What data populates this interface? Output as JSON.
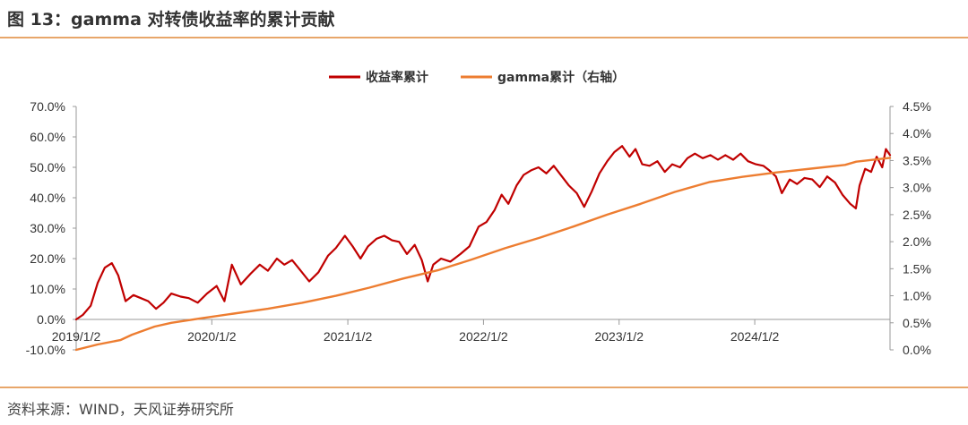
{
  "header": {
    "title": "图 13：gamma 对转债收益率的累计贡献"
  },
  "footer": {
    "source": "资料来源：WIND，天风证券研究所"
  },
  "colors": {
    "series1": "#c00000",
    "series2": "#ed7d31",
    "accent_rule": "#e8a66a"
  },
  "chart_data": {
    "type": "line",
    "title": "",
    "x_tick_labels": [
      "2019/1/2",
      "2020/1/2",
      "2021/1/2",
      "2022/1/2",
      "2023/1/2",
      "2024/1/2"
    ],
    "x_range": [
      "2019/1/2",
      "2024/12/31"
    ],
    "legend_position": "top-center",
    "y_left": {
      "ticks": [
        "-10.0%",
        "0.0%",
        "10.0%",
        "20.0%",
        "30.0%",
        "40.0%",
        "50.0%",
        "60.0%",
        "70.0%"
      ],
      "range": [
        -10,
        70
      ]
    },
    "y_right": {
      "ticks": [
        "0.0%",
        "0.5%",
        "1.0%",
        "1.5%",
        "2.0%",
        "2.5%",
        "3.0%",
        "3.5%",
        "4.0%",
        "4.5%"
      ],
      "range": [
        0,
        4.5
      ]
    },
    "series": [
      {
        "name": "收益率累计",
        "axis": "left",
        "points": [
          [
            "2019/1/2",
            0.0
          ],
          [
            "2019/1/20",
            1.5
          ],
          [
            "2019/2/10",
            4.5
          ],
          [
            "2019/3/1",
            12.0
          ],
          [
            "2019/3/20",
            17.0
          ],
          [
            "2019/4/8",
            18.5
          ],
          [
            "2019/4/25",
            14.5
          ],
          [
            "2019/5/15",
            6.0
          ],
          [
            "2019/6/5",
            8.0
          ],
          [
            "2019/6/25",
            7.0
          ],
          [
            "2019/7/15",
            6.0
          ],
          [
            "2019/8/5",
            3.5
          ],
          [
            "2019/8/25",
            5.5
          ],
          [
            "2019/9/15",
            8.5
          ],
          [
            "2019/10/10",
            7.5
          ],
          [
            "2019/11/1",
            7.0
          ],
          [
            "2019/11/25",
            5.5
          ],
          [
            "2019/12/20",
            8.5
          ],
          [
            "2020/1/15",
            11.0
          ],
          [
            "2020/2/5",
            6.0
          ],
          [
            "2020/2/25",
            18.0
          ],
          [
            "2020/3/20",
            11.5
          ],
          [
            "2020/4/15",
            15.0
          ],
          [
            "2020/5/10",
            18.0
          ],
          [
            "2020/6/1",
            16.0
          ],
          [
            "2020/6/25",
            20.0
          ],
          [
            "2020/7/15",
            18.0
          ],
          [
            "2020/8/5",
            19.5
          ],
          [
            "2020/8/25",
            16.5
          ],
          [
            "2020/9/20",
            12.5
          ],
          [
            "2020/10/15",
            15.5
          ],
          [
            "2020/11/10",
            21.0
          ],
          [
            "2020/12/1",
            23.5
          ],
          [
            "2020/12/25",
            27.5
          ],
          [
            "2021/1/15",
            24.0
          ],
          [
            "2021/2/5",
            20.0
          ],
          [
            "2021/2/25",
            24.0
          ],
          [
            "2021/3/20",
            26.5
          ],
          [
            "2021/4/10",
            27.5
          ],
          [
            "2021/5/1",
            26.0
          ],
          [
            "2021/5/20",
            25.5
          ],
          [
            "2021/6/10",
            21.5
          ],
          [
            "2021/7/1",
            24.5
          ],
          [
            "2021/7/20",
            19.5
          ],
          [
            "2021/8/5",
            12.5
          ],
          [
            "2021/8/20",
            18.0
          ],
          [
            "2021/9/10",
            20.0
          ],
          [
            "2021/10/5",
            19.0
          ],
          [
            "2021/11/1",
            21.5
          ],
          [
            "2021/11/25",
            24.0
          ],
          [
            "2021/12/20",
            30.5
          ],
          [
            "2022/1/10",
            32.0
          ],
          [
            "2022/2/1",
            36.0
          ],
          [
            "2022/2/20",
            41.0
          ],
          [
            "2022/3/10",
            38.0
          ],
          [
            "2022/4/1",
            44.0
          ],
          [
            "2022/4/20",
            47.5
          ],
          [
            "2022/5/10",
            49.0
          ],
          [
            "2022/5/30",
            50.0
          ],
          [
            "2022/6/20",
            48.0
          ],
          [
            "2022/7/10",
            50.5
          ],
          [
            "2022/8/1",
            47.0
          ],
          [
            "2022/8/20",
            44.0
          ],
          [
            "2022/9/10",
            41.5
          ],
          [
            "2022/9/30",
            37.0
          ],
          [
            "2022/10/20",
            42.0
          ],
          [
            "2022/11/10",
            48.0
          ],
          [
            "2022/12/1",
            52.0
          ],
          [
            "2022/12/20",
            55.0
          ],
          [
            "2023/1/10",
            57.0
          ],
          [
            "2023/1/30",
            53.5
          ],
          [
            "2023/2/15",
            56.0
          ],
          [
            "2023/3/5",
            51.0
          ],
          [
            "2023/3/25",
            50.5
          ],
          [
            "2023/4/15",
            52.0
          ],
          [
            "2023/5/5",
            48.5
          ],
          [
            "2023/5/25",
            51.0
          ],
          [
            "2023/6/15",
            50.0
          ],
          [
            "2023/7/5",
            53.0
          ],
          [
            "2023/7/25",
            54.5
          ],
          [
            "2023/8/15",
            53.0
          ],
          [
            "2023/9/5",
            54.0
          ],
          [
            "2023/9/25",
            52.5
          ],
          [
            "2023/10/15",
            54.0
          ],
          [
            "2023/11/5",
            52.5
          ],
          [
            "2023/11/25",
            54.5
          ],
          [
            "2023/12/15",
            52.0
          ],
          [
            "2024/1/5",
            51.0
          ],
          [
            "2024/1/25",
            50.5
          ],
          [
            "2024/2/10",
            49.0
          ],
          [
            "2024/2/28",
            47.0
          ],
          [
            "2024/3/15",
            41.5
          ],
          [
            "2024/4/5",
            46.0
          ],
          [
            "2024/4/25",
            44.5
          ],
          [
            "2024/5/15",
            46.5
          ],
          [
            "2024/6/5",
            46.0
          ],
          [
            "2024/6/25",
            43.5
          ],
          [
            "2024/7/15",
            47.0
          ],
          [
            "2024/8/5",
            45.0
          ],
          [
            "2024/8/25",
            41.0
          ],
          [
            "2024/9/15",
            38.0
          ],
          [
            "2024/9/30",
            36.5
          ],
          [
            "2024/10/10",
            44.0
          ],
          [
            "2024/10/25",
            49.5
          ],
          [
            "2024/11/10",
            48.5
          ],
          [
            "2024/11/25",
            53.5
          ],
          [
            "2024/12/10",
            50.0
          ],
          [
            "2024/12/20",
            56.0
          ],
          [
            "2024/12/31",
            54.0
          ]
        ]
      },
      {
        "name": "gamma累计（右轴）",
        "axis": "right",
        "points": [
          [
            "2019/1/2",
            0.0
          ],
          [
            "2019/3/1",
            0.1
          ],
          [
            "2019/5/1",
            0.18
          ],
          [
            "2019/6/1",
            0.28
          ],
          [
            "2019/8/1",
            0.43
          ],
          [
            "2019/9/15",
            0.5
          ],
          [
            "2019/12/1",
            0.58
          ],
          [
            "2020/3/1",
            0.67
          ],
          [
            "2020/6/1",
            0.76
          ],
          [
            "2020/9/1",
            0.87
          ],
          [
            "2020/12/1",
            1.0
          ],
          [
            "2021/3/1",
            1.15
          ],
          [
            "2021/6/1",
            1.32
          ],
          [
            "2021/9/1",
            1.47
          ],
          [
            "2021/12/1",
            1.67
          ],
          [
            "2022/3/1",
            1.88
          ],
          [
            "2022/6/1",
            2.07
          ],
          [
            "2022/9/1",
            2.28
          ],
          [
            "2022/12/1",
            2.5
          ],
          [
            "2023/3/1",
            2.7
          ],
          [
            "2023/6/1",
            2.92
          ],
          [
            "2023/9/1",
            3.1
          ],
          [
            "2023/12/1",
            3.2
          ],
          [
            "2024/3/1",
            3.28
          ],
          [
            "2024/6/1",
            3.35
          ],
          [
            "2024/9/1",
            3.42
          ],
          [
            "2024/10/1",
            3.48
          ],
          [
            "2024/12/31",
            3.55
          ]
        ]
      }
    ]
  }
}
